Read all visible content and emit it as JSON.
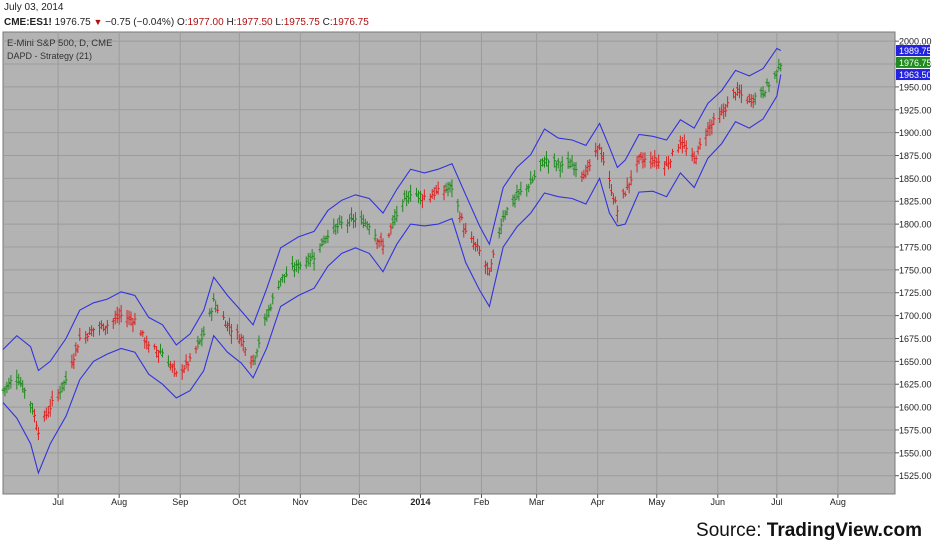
{
  "header": {
    "date": "July 03, 2014",
    "symbol": "CME:ES1!",
    "last": "1976.75",
    "change": "−0.75 (−0.04%)",
    "open_label": "O:",
    "open": "1977.00",
    "high_label": "H:",
    "high": "1977.50",
    "low_label": "L:",
    "low": "1975.75",
    "close_label": "C:",
    "close": "1976.75",
    "direction_icon": "down-triangle"
  },
  "source": {
    "prefix": "Source: ",
    "name": "TradingView.com"
  },
  "colors": {
    "plot_bg": "#b3b3b3",
    "grid": "#9c9c9c",
    "band": "#3333dd",
    "up_bar": "#1f8a1f",
    "down_bar": "#dd2222",
    "label_bg": "#2323dd"
  },
  "chart_data": {
    "type": "ohlc-bar",
    "title": "E-Mini S&P 500, D, CME",
    "subtitle": "DAPD - Strategy (21)",
    "ylim": [
      1505,
      2010
    ],
    "y_ticks": [
      1525,
      1550,
      1575,
      1600,
      1625,
      1650,
      1675,
      1700,
      1725,
      1750,
      1775,
      1800,
      1825,
      1850,
      1875,
      1900,
      1925,
      1950,
      1975,
      2000
    ],
    "y_tick_labels": [
      "1525.00",
      "1550.00",
      "1575.00",
      "1600.00",
      "1625.00",
      "1650.00",
      "1675.00",
      "1700.00",
      "1725.00",
      "1750.00",
      "1775.00",
      "1800.00",
      "1825.00",
      "1850.00",
      "1875.00",
      "1900.00",
      "1925.00",
      "1950.00",
      "1975.00",
      "2000.00"
    ],
    "x_range": [
      "2013-06-03",
      "2014-08-30"
    ],
    "x_ticks": [
      {
        "date": "2013-07-01",
        "label": "Jul"
      },
      {
        "date": "2013-08-01",
        "label": "Aug"
      },
      {
        "date": "2013-09-01",
        "label": "Sep"
      },
      {
        "date": "2013-10-01",
        "label": "Oct"
      },
      {
        "date": "2013-11-01",
        "label": "Nov"
      },
      {
        "date": "2013-12-01",
        "label": "Dec"
      },
      {
        "date": "2014-01-01",
        "label": "2014"
      },
      {
        "date": "2014-02-01",
        "label": "Feb"
      },
      {
        "date": "2014-03-01",
        "label": "Mar"
      },
      {
        "date": "2014-04-01",
        "label": "Apr"
      },
      {
        "date": "2014-05-01",
        "label": "May"
      },
      {
        "date": "2014-06-01",
        "label": "Jun"
      },
      {
        "date": "2014-07-01",
        "label": "Jul"
      },
      {
        "date": "2014-08-01",
        "label": "Aug"
      }
    ],
    "price_labels": [
      {
        "value": 1989.75,
        "text": "1989.75"
      },
      {
        "value": 1976.75,
        "text": "1976.75"
      },
      {
        "value": 1963.5,
        "text": "1963.50"
      }
    ],
    "close_path": [
      [
        "2013-06-03",
        1618
      ],
      [
        "2013-06-10",
        1635
      ],
      [
        "2013-06-17",
        1605
      ],
      [
        "2013-06-21",
        1575
      ],
      [
        "2013-06-27",
        1600
      ],
      [
        "2013-07-05",
        1630
      ],
      [
        "2013-07-12",
        1675
      ],
      [
        "2013-07-19",
        1685
      ],
      [
        "2013-07-26",
        1690
      ],
      [
        "2013-08-02",
        1700
      ],
      [
        "2013-08-09",
        1695
      ],
      [
        "2013-08-16",
        1665
      ],
      [
        "2013-08-23",
        1660
      ],
      [
        "2013-08-30",
        1635
      ],
      [
        "2013-09-06",
        1650
      ],
      [
        "2013-09-13",
        1680
      ],
      [
        "2013-09-18",
        1715
      ],
      [
        "2013-09-25",
        1690
      ],
      [
        "2013-10-02",
        1675
      ],
      [
        "2013-10-08",
        1650
      ],
      [
        "2013-10-15",
        1700
      ],
      [
        "2013-10-22",
        1740
      ],
      [
        "2013-10-31",
        1755
      ],
      [
        "2013-11-08",
        1765
      ],
      [
        "2013-11-15",
        1790
      ],
      [
        "2013-11-22",
        1800
      ],
      [
        "2013-11-29",
        1805
      ],
      [
        "2013-12-06",
        1800
      ],
      [
        "2013-12-13",
        1775
      ],
      [
        "2013-12-20",
        1810
      ],
      [
        "2013-12-27",
        1835
      ],
      [
        "2014-01-03",
        1830
      ],
      [
        "2014-01-10",
        1835
      ],
      [
        "2014-01-17",
        1840
      ],
      [
        "2014-01-24",
        1790
      ],
      [
        "2014-01-31",
        1770
      ],
      [
        "2014-02-05",
        1745
      ],
      [
        "2014-02-12",
        1810
      ],
      [
        "2014-02-19",
        1830
      ],
      [
        "2014-02-26",
        1845
      ],
      [
        "2014-03-05",
        1870
      ],
      [
        "2014-03-12",
        1865
      ],
      [
        "2014-03-19",
        1865
      ],
      [
        "2014-03-26",
        1855
      ],
      [
        "2014-04-02",
        1885
      ],
      [
        "2014-04-07",
        1845
      ],
      [
        "2014-04-11",
        1815
      ],
      [
        "2014-04-15",
        1835
      ],
      [
        "2014-04-22",
        1870
      ],
      [
        "2014-04-29",
        1870
      ],
      [
        "2014-05-06",
        1865
      ],
      [
        "2014-05-13",
        1890
      ],
      [
        "2014-05-20",
        1870
      ],
      [
        "2014-05-27",
        1905
      ],
      [
        "2014-06-03",
        1920
      ],
      [
        "2014-06-10",
        1945
      ],
      [
        "2014-06-17",
        1935
      ],
      [
        "2014-06-24",
        1945
      ],
      [
        "2014-07-01",
        1965
      ],
      [
        "2014-07-03",
        1976.75
      ]
    ],
    "upper_band": [
      [
        "2013-06-03",
        1663
      ],
      [
        "2013-06-10",
        1678
      ],
      [
        "2013-06-17",
        1666
      ],
      [
        "2013-06-21",
        1640
      ],
      [
        "2013-06-27",
        1650
      ],
      [
        "2013-07-05",
        1675
      ],
      [
        "2013-07-12",
        1706
      ],
      [
        "2013-07-19",
        1714
      ],
      [
        "2013-07-26",
        1718
      ],
      [
        "2013-08-02",
        1726
      ],
      [
        "2013-08-09",
        1722
      ],
      [
        "2013-08-16",
        1698
      ],
      [
        "2013-08-23",
        1690
      ],
      [
        "2013-08-30",
        1668
      ],
      [
        "2013-09-06",
        1680
      ],
      [
        "2013-09-13",
        1706
      ],
      [
        "2013-09-18",
        1742
      ],
      [
        "2013-09-25",
        1722
      ],
      [
        "2013-10-02",
        1705
      ],
      [
        "2013-10-08",
        1690
      ],
      [
        "2013-10-15",
        1730
      ],
      [
        "2013-10-22",
        1774
      ],
      [
        "2013-10-31",
        1786
      ],
      [
        "2013-11-08",
        1792
      ],
      [
        "2013-11-15",
        1815
      ],
      [
        "2013-11-22",
        1826
      ],
      [
        "2013-11-29",
        1832
      ],
      [
        "2013-12-06",
        1828
      ],
      [
        "2013-12-13",
        1812
      ],
      [
        "2013-12-20",
        1838
      ],
      [
        "2013-12-27",
        1860
      ],
      [
        "2014-01-03",
        1856
      ],
      [
        "2014-01-10",
        1860
      ],
      [
        "2014-01-17",
        1866
      ],
      [
        "2014-01-24",
        1832
      ],
      [
        "2014-01-31",
        1798
      ],
      [
        "2014-02-05",
        1778
      ],
      [
        "2014-02-12",
        1840
      ],
      [
        "2014-02-19",
        1862
      ],
      [
        "2014-02-26",
        1876
      ],
      [
        "2014-03-05",
        1904
      ],
      [
        "2014-03-12",
        1894
      ],
      [
        "2014-03-19",
        1892
      ],
      [
        "2014-03-26",
        1886
      ],
      [
        "2014-04-02",
        1910
      ],
      [
        "2014-04-07",
        1884
      ],
      [
        "2014-04-11",
        1862
      ],
      [
        "2014-04-15",
        1870
      ],
      [
        "2014-04-22",
        1898
      ],
      [
        "2014-04-29",
        1896
      ],
      [
        "2014-05-06",
        1892
      ],
      [
        "2014-05-13",
        1914
      ],
      [
        "2014-05-20",
        1905
      ],
      [
        "2014-05-27",
        1932
      ],
      [
        "2014-06-03",
        1946
      ],
      [
        "2014-06-10",
        1968
      ],
      [
        "2014-06-17",
        1962
      ],
      [
        "2014-06-24",
        1970
      ],
      [
        "2014-07-01",
        1992
      ],
      [
        "2014-07-03",
        1989.75
      ]
    ],
    "lower_band": [
      [
        "2013-06-03",
        1605
      ],
      [
        "2013-06-10",
        1588
      ],
      [
        "2013-06-17",
        1560
      ],
      [
        "2013-06-21",
        1528
      ],
      [
        "2013-06-27",
        1560
      ],
      [
        "2013-07-05",
        1590
      ],
      [
        "2013-07-12",
        1630
      ],
      [
        "2013-07-19",
        1650
      ],
      [
        "2013-07-26",
        1658
      ],
      [
        "2013-08-02",
        1664
      ],
      [
        "2013-08-09",
        1660
      ],
      [
        "2013-08-16",
        1636
      ],
      [
        "2013-08-23",
        1625
      ],
      [
        "2013-08-30",
        1610
      ],
      [
        "2013-09-06",
        1618
      ],
      [
        "2013-09-13",
        1640
      ],
      [
        "2013-09-18",
        1678
      ],
      [
        "2013-09-25",
        1660
      ],
      [
        "2013-10-02",
        1648
      ],
      [
        "2013-10-08",
        1632
      ],
      [
        "2013-10-15",
        1665
      ],
      [
        "2013-10-22",
        1710
      ],
      [
        "2013-10-31",
        1722
      ],
      [
        "2013-11-08",
        1730
      ],
      [
        "2013-11-15",
        1754
      ],
      [
        "2013-11-22",
        1768
      ],
      [
        "2013-11-29",
        1774
      ],
      [
        "2013-12-06",
        1768
      ],
      [
        "2013-12-13",
        1748
      ],
      [
        "2013-12-20",
        1778
      ],
      [
        "2013-12-27",
        1800
      ],
      [
        "2014-01-03",
        1798
      ],
      [
        "2014-01-10",
        1800
      ],
      [
        "2014-01-17",
        1806
      ],
      [
        "2014-01-24",
        1758
      ],
      [
        "2014-01-31",
        1728
      ],
      [
        "2014-02-05",
        1710
      ],
      [
        "2014-02-12",
        1775
      ],
      [
        "2014-02-19",
        1797
      ],
      [
        "2014-02-26",
        1812
      ],
      [
        "2014-03-05",
        1834
      ],
      [
        "2014-03-12",
        1830
      ],
      [
        "2014-03-19",
        1828
      ],
      [
        "2014-03-26",
        1822
      ],
      [
        "2014-04-02",
        1850
      ],
      [
        "2014-04-07",
        1812
      ],
      [
        "2014-04-11",
        1798
      ],
      [
        "2014-04-15",
        1800
      ],
      [
        "2014-04-22",
        1835
      ],
      [
        "2014-04-29",
        1836
      ],
      [
        "2014-05-06",
        1830
      ],
      [
        "2014-05-13",
        1856
      ],
      [
        "2014-05-20",
        1840
      ],
      [
        "2014-05-27",
        1872
      ],
      [
        "2014-06-03",
        1888
      ],
      [
        "2014-06-10",
        1912
      ],
      [
        "2014-06-17",
        1905
      ],
      [
        "2014-06-24",
        1915
      ],
      [
        "2014-07-01",
        1940
      ],
      [
        "2014-07-03",
        1963.5
      ]
    ],
    "bar_color_segments": [
      [
        "2013-06-03",
        "up"
      ],
      [
        "2013-06-19",
        "down"
      ],
      [
        "2013-07-02",
        "up"
      ],
      [
        "2013-07-08",
        "down"
      ],
      [
        "2013-08-22",
        "up"
      ],
      [
        "2013-08-27",
        "down"
      ],
      [
        "2013-09-10",
        "up"
      ],
      [
        "2013-09-20",
        "down"
      ],
      [
        "2013-10-09",
        "up"
      ],
      [
        "2013-11-26",
        "up"
      ],
      [
        "2013-12-10",
        "down"
      ],
      [
        "2013-12-18",
        "up"
      ],
      [
        "2014-01-02",
        "down"
      ],
      [
        "2014-01-14",
        "up"
      ],
      [
        "2014-01-21",
        "down"
      ],
      [
        "2014-02-10",
        "up"
      ],
      [
        "2014-03-24",
        "down"
      ],
      [
        "2014-05-27",
        "down"
      ],
      [
        "2014-06-13",
        "down"
      ],
      [
        "2014-06-20",
        "up"
      ]
    ]
  }
}
